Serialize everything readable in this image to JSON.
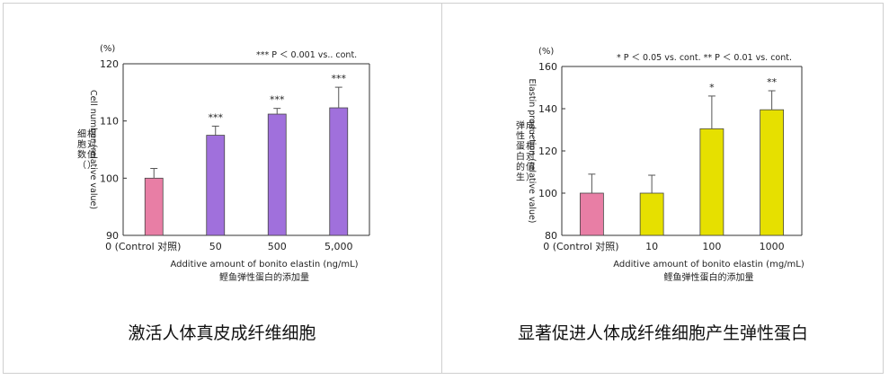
{
  "chart_data": [
    {
      "type": "bar",
      "caption": "激活人体真皮成纤维细胞",
      "unit": "(%)",
      "note": "*** P ＜ 0.001 vs.. cont.",
      "ylabel": "Cell number (relative value)",
      "ylabel_cn": "细胞数（相对值）",
      "xlabel": "Additive amount of bonito elastin (ng/mL)",
      "xlabel_cn": "鲣鱼弹性蛋白的添加量",
      "ylim": [
        90,
        120
      ],
      "yticks": [
        90,
        100,
        110,
        120
      ],
      "categories": [
        "0 (Control 对照)",
        "50",
        "500",
        "5,000"
      ],
      "values": [
        100,
        107.5,
        111.2,
        112.3
      ],
      "errors": [
        1.7,
        1.6,
        1.0,
        3.6
      ],
      "significance": [
        "",
        "***",
        "***",
        "***"
      ],
      "colors": [
        "#e87ea5",
        "#a070dc",
        "#a070dc",
        "#a070dc"
      ]
    },
    {
      "type": "bar",
      "caption": "显著促进人体成纤维细胞产生弹性蛋白",
      "unit": "(%)",
      "note": "* P ＜ 0.05 vs. cont.     ** P ＜ 0.01 vs. cont.",
      "ylabel": "Elastin production (relative value)",
      "ylabel_cn": "弹性蛋白的生成（相对值）",
      "xlabel": "Additive amount of bonito elastin (mg/mL)",
      "xlabel_cn": "鲣鱼弹性蛋白的添加量",
      "ylim": [
        80,
        160
      ],
      "yticks": [
        80,
        100,
        120,
        140,
        160
      ],
      "categories": [
        "0 (Control 对照)",
        "10",
        "100",
        "1000"
      ],
      "values": [
        100,
        100,
        130.5,
        139.5
      ],
      "errors": [
        9,
        8.5,
        15.5,
        9
      ],
      "significance": [
        "",
        "",
        "*",
        "**"
      ],
      "colors": [
        "#e87ea5",
        "#e6e000",
        "#e6e000",
        "#e6e000"
      ]
    }
  ]
}
